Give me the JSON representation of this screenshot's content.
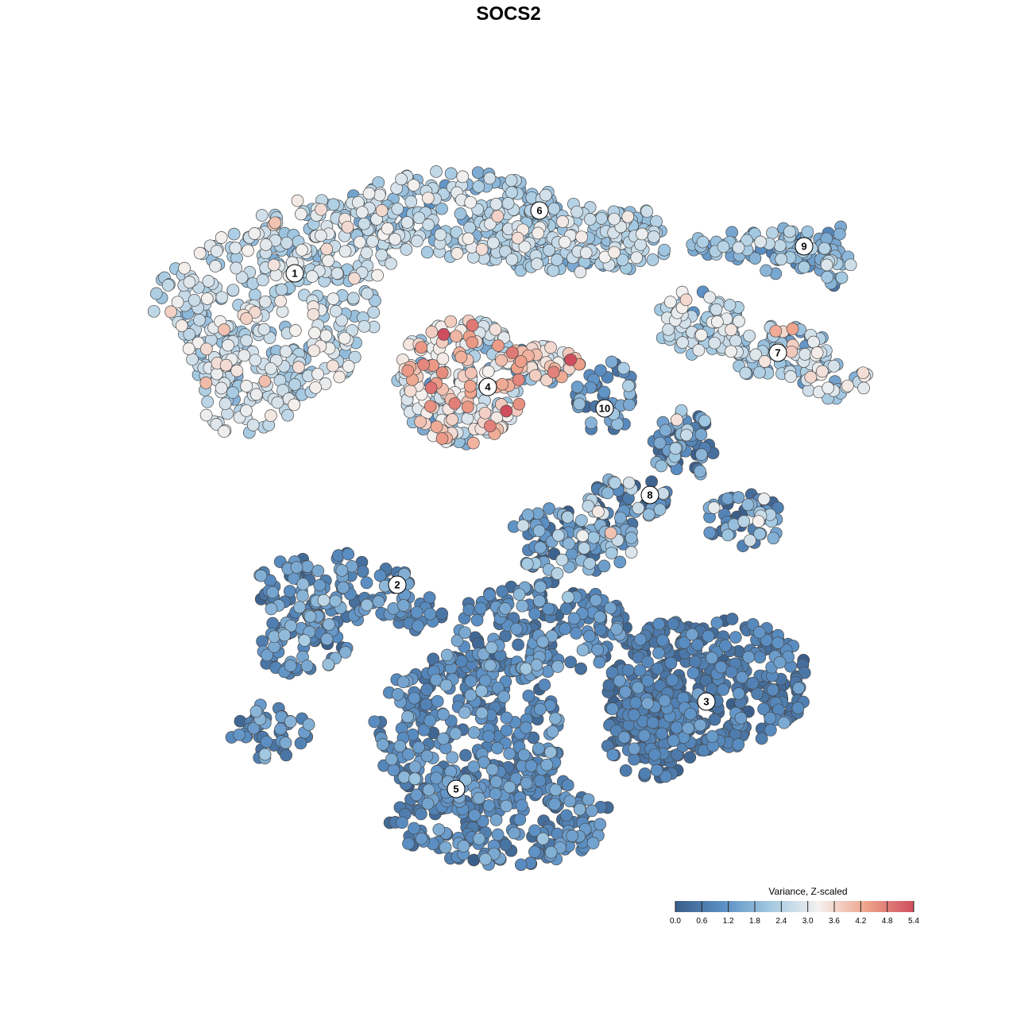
{
  "chart_data": {
    "type": "scatter",
    "title": "SOCS2",
    "xlabel": "",
    "ylabel": "",
    "grid": false,
    "legend": {
      "title": "Variance, Z-scaled",
      "placement": "bottom-right",
      "range": [
        0.0,
        5.4
      ],
      "ticks": [
        "0.0",
        "0.6",
        "1.2",
        "1.8",
        "2.4",
        "3.0",
        "3.6",
        "4.2",
        "4.8",
        "5.4"
      ],
      "colors": [
        "#3b5f8a",
        "#5b8fc4",
        "#a3c9e2",
        "#f4f1ef",
        "#efa48c",
        "#cf4e5e"
      ]
    },
    "clusters": [
      {
        "label": "1",
        "mean_value": 2.6,
        "spread": 0.5
      },
      {
        "label": "2",
        "mean_value": 1.0,
        "spread": 0.5
      },
      {
        "label": "3",
        "mean_value": 0.6,
        "spread": 0.35
      },
      {
        "label": "4",
        "mean_value": 3.0,
        "spread": 0.9
      },
      {
        "label": "5",
        "mean_value": 0.9,
        "spread": 0.45
      },
      {
        "label": "6",
        "mean_value": 2.3,
        "spread": 0.5
      },
      {
        "label": "7",
        "mean_value": 2.4,
        "spread": 0.7
      },
      {
        "label": "8",
        "mean_value": 1.2,
        "spread": 0.9
      },
      {
        "label": "9",
        "mean_value": 1.8,
        "spread": 0.5
      },
      {
        "label": "10",
        "mean_value": 1.1,
        "spread": 0.5
      }
    ]
  }
}
